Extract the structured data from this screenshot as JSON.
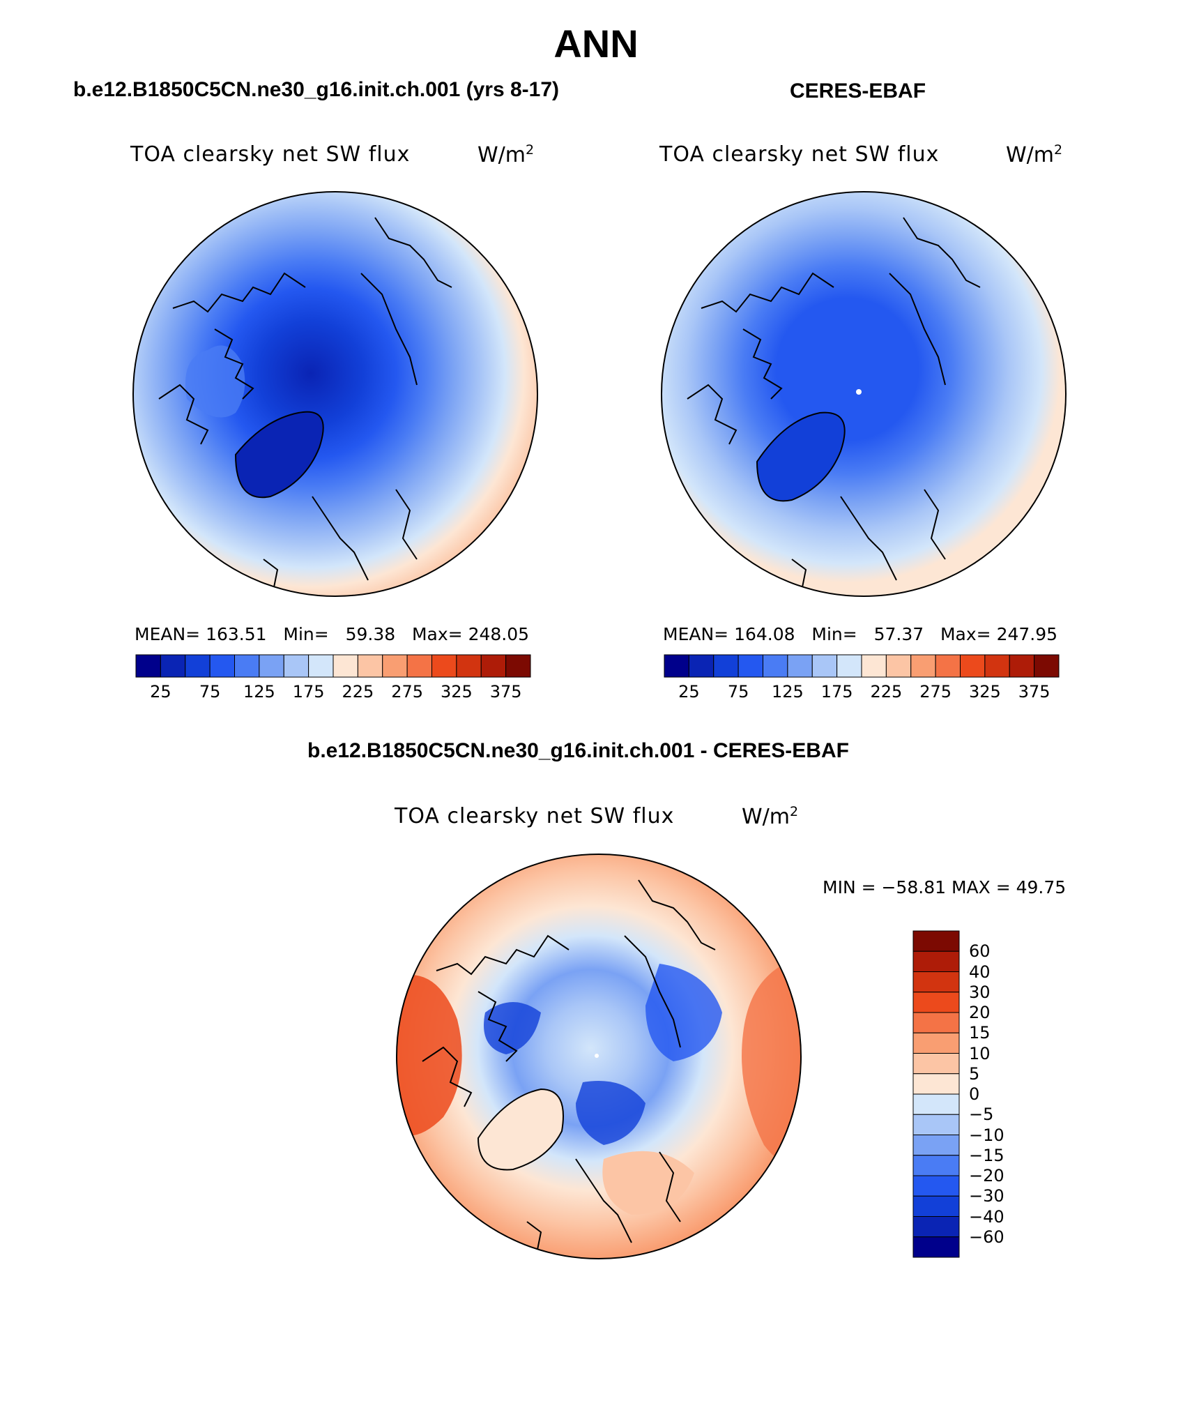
{
  "title": "ANN",
  "panels": {
    "model": {
      "title": "b.e12.B1850C5CN.ne30_g16.init.ch.001 (yrs 8-17)",
      "field": "TOA clearsky net SW flux",
      "units": "W/m",
      "units_exp": "2",
      "mean_label": "MEAN=",
      "mean": "163.51",
      "min_label": "Min=",
      "min": "59.38",
      "max_label": "Max=",
      "max": "248.05"
    },
    "obs": {
      "title": "CERES-EBAF",
      "field": "TOA clearsky net SW flux",
      "units": "W/m",
      "units_exp": "2",
      "mean_label": "MEAN=",
      "mean": "164.08",
      "min_label": "Min=",
      "min": "57.37",
      "max_label": "Max=",
      "max": "247.95"
    },
    "diff": {
      "title": "b.e12.B1850C5CN.ne30_g16.init.ch.001 - CERES-EBAF",
      "field": "TOA clearsky net SW flux",
      "units": "W/m",
      "units_exp": "2",
      "minmax_text": "MIN = −58.81 MAX =   49.75"
    }
  },
  "colorbar_abs": {
    "ticks": [
      "25",
      "75",
      "125",
      "175",
      "225",
      "275",
      "325",
      "375"
    ],
    "colors": [
      "#00008b",
      "#0a24b4",
      "#1240d8",
      "#2458f0",
      "#4a7cf4",
      "#7aa2f4",
      "#a9c6f7",
      "#d3e6fa",
      "#fde6d4",
      "#fcc5a5",
      "#f99e72",
      "#f47346",
      "#ec4a1c",
      "#d23410",
      "#ae1c08",
      "#7c0a02"
    ]
  },
  "colorbar_diff": {
    "labels": [
      "60",
      "40",
      "30",
      "20",
      "15",
      "10",
      "5",
      "0",
      "−5",
      "−10",
      "−15",
      "−20",
      "−30",
      "−40",
      "−60"
    ],
    "colors": [
      "#7c0a02",
      "#ae1c08",
      "#d23410",
      "#ec4a1c",
      "#f47346",
      "#f99e72",
      "#fcc5a5",
      "#fde6d4",
      "#d3e6fa",
      "#a9c6f7",
      "#7aa2f4",
      "#4a7cf4",
      "#2458f0",
      "#1240d8",
      "#0a24b4",
      "#00008b"
    ]
  }
}
